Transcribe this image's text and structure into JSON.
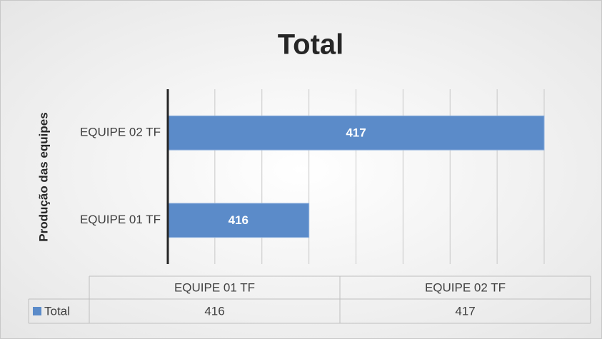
{
  "chart_data": {
    "type": "bar",
    "orientation": "horizontal",
    "title": "Total",
    "y_axis_label": "Produção das equipes",
    "categories": [
      "EQUIPE 01 TF",
      "EQUIPE 02 TF"
    ],
    "series": [
      {
        "name": "Total",
        "color": "#5b8bc9",
        "values": [
          416,
          417
        ]
      }
    ],
    "xlim": [
      415.4,
      417
    ],
    "xticks": [
      415.4,
      415.6,
      415.8,
      416,
      416.2,
      416.4,
      416.6,
      416.8,
      417
    ],
    "grid": true,
    "data_table": true
  }
}
